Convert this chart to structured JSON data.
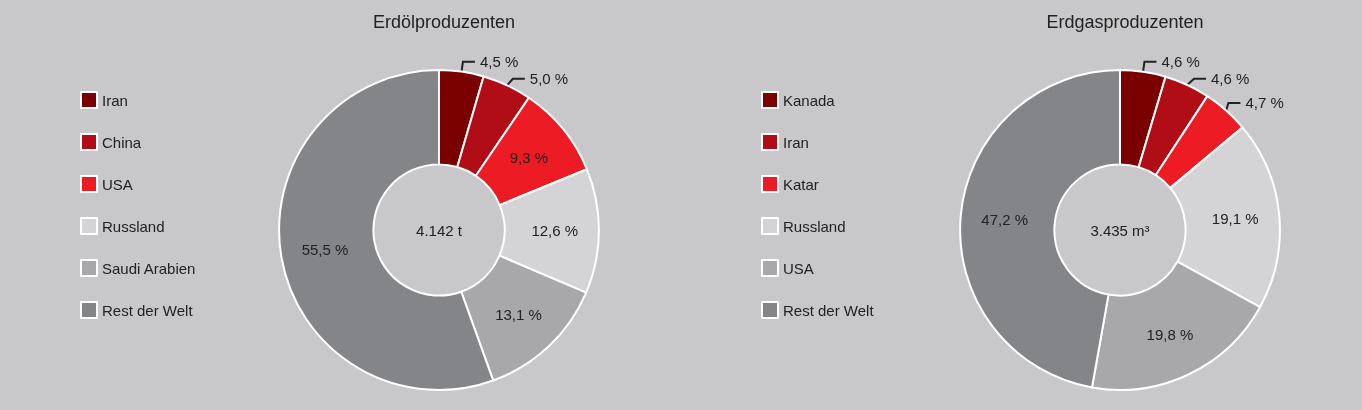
{
  "chart_data": [
    {
      "type": "donut",
      "title": "Erdölproduzenten",
      "categories": [
        "Iran",
        "China",
        "USA",
        "Russland",
        "Saudi Arabien",
        "Rest der Welt"
      ],
      "values": [
        4.5,
        5.0,
        9.3,
        12.6,
        13.1,
        55.5
      ],
      "value_labels": [
        "4,5 %",
        "5,0 %",
        "9,3 %",
        "12,6 %",
        "13,1 %",
        "55,5 %"
      ],
      "colors": [
        "#7b0000",
        "#b00d17",
        "#ed1c24",
        "#d4d4d6",
        "#a8a8ab",
        "#848589"
      ],
      "legend": "left",
      "annotations": [
        "4.142 t"
      ]
    },
    {
      "type": "donut",
      "title": "Erdgasproduzenten",
      "categories": [
        "Kanada",
        "Iran",
        "Katar",
        "Russland",
        "USA",
        "Rest der Welt"
      ],
      "values": [
        4.6,
        4.6,
        4.7,
        19.1,
        19.8,
        47.2
      ],
      "value_labels": [
        "4,6 %",
        "4,6 %",
        "4,7 %",
        "19,1 %",
        "19,8 %",
        "47,2 %"
      ],
      "colors": [
        "#7b0000",
        "#b00d17",
        "#ed1c24",
        "#d4d4d6",
        "#a8a8ab",
        "#848589"
      ],
      "legend": "left",
      "annotations": [
        "3.435 m³"
      ]
    }
  ]
}
